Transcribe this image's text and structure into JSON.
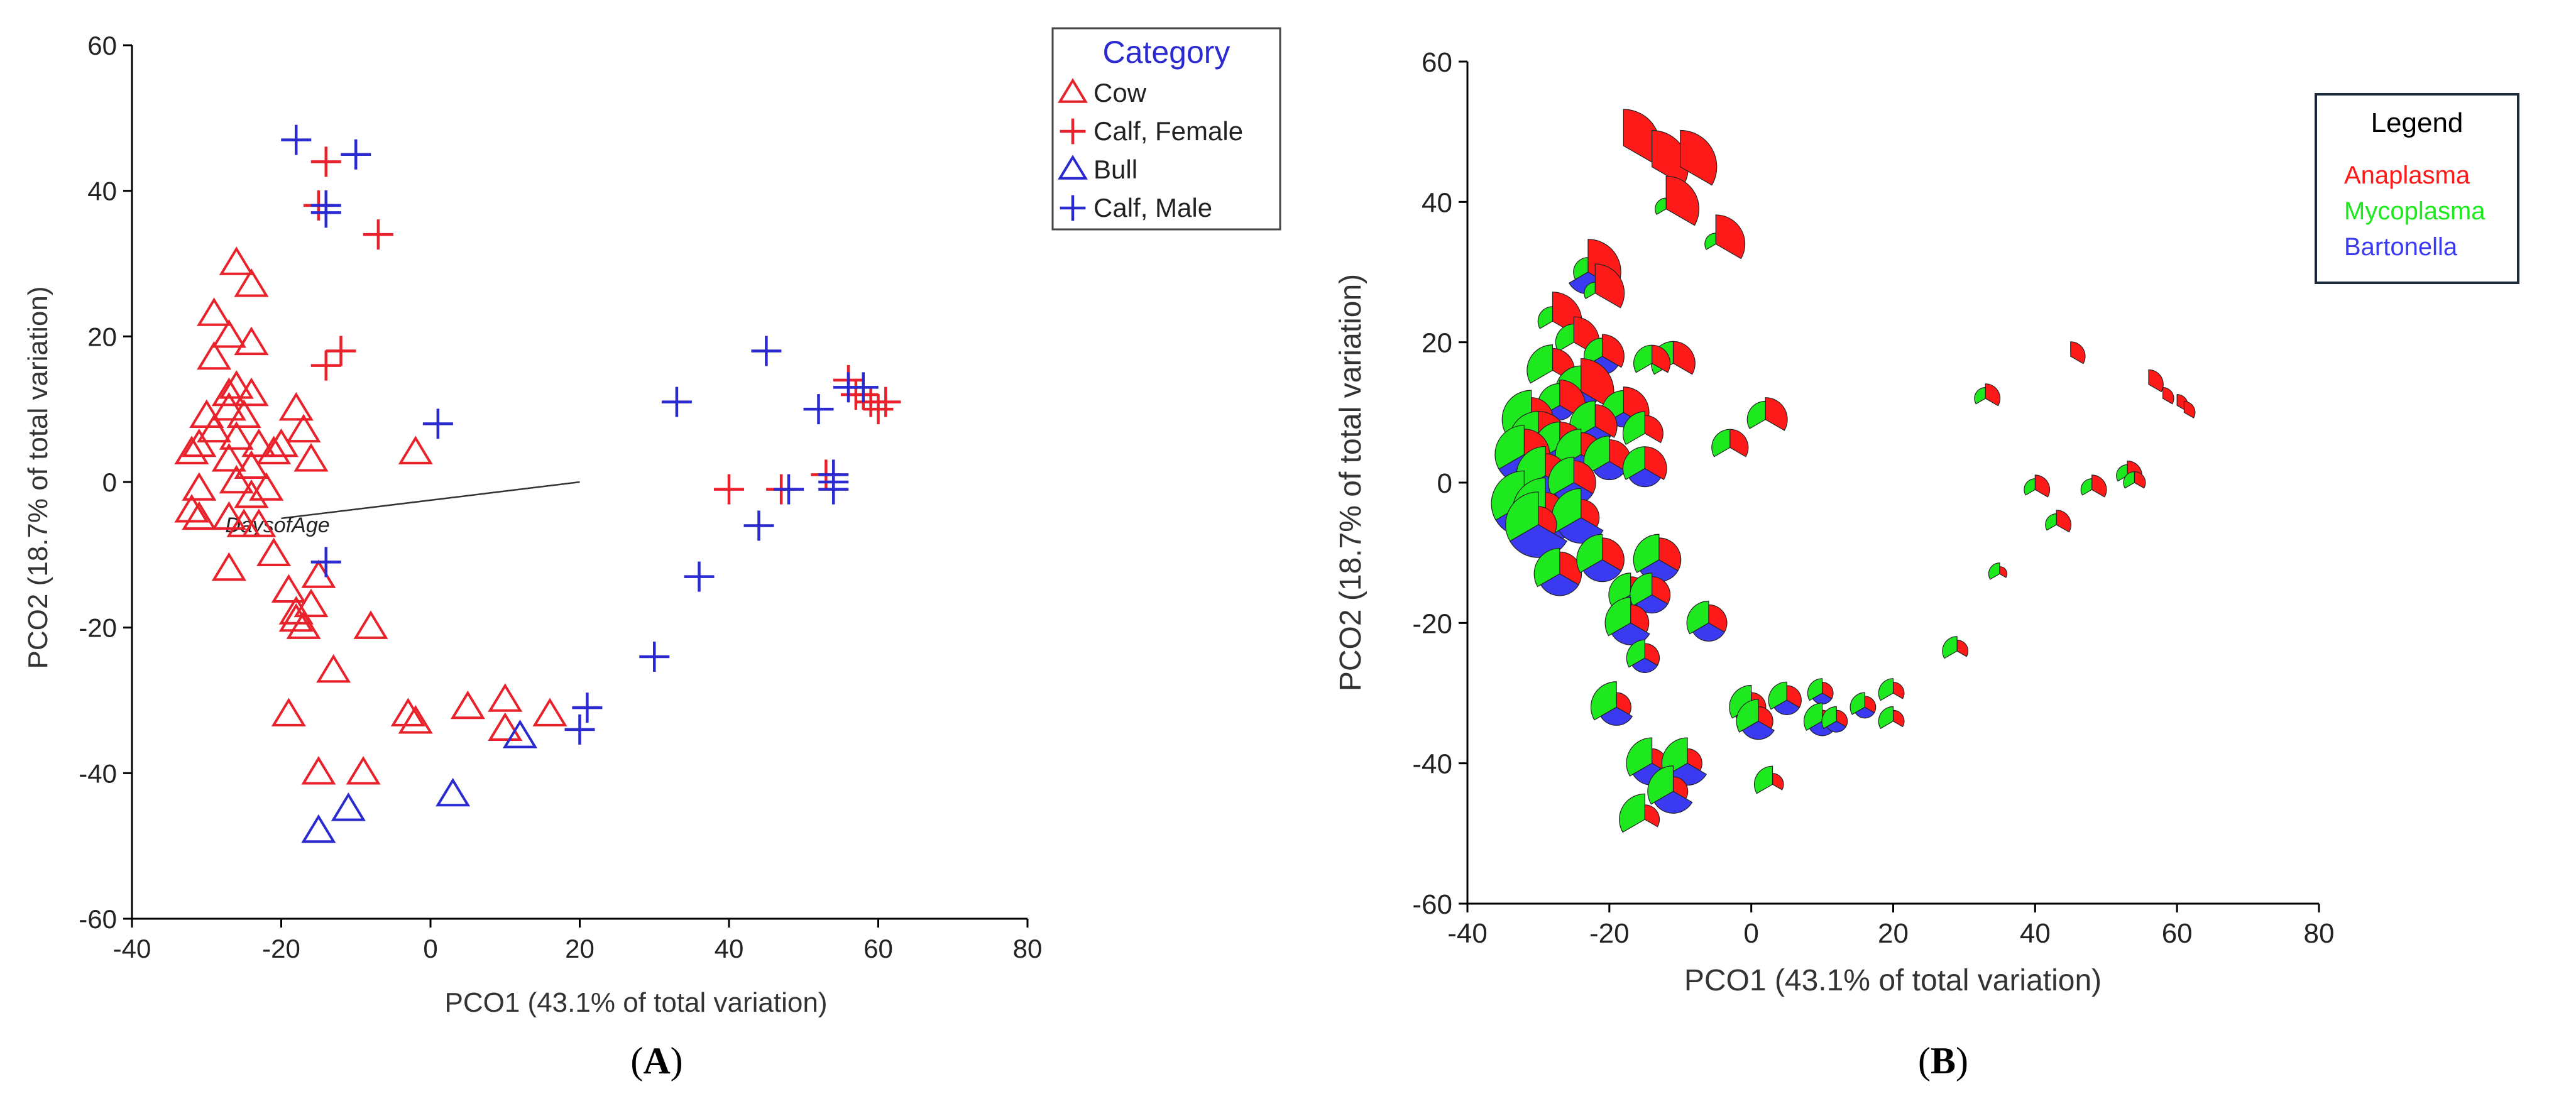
{
  "chart_data": [
    {
      "panel": "A",
      "type": "scatter",
      "xlabel": "PCO1 (43.1% of total variation)",
      "ylabel": "PCO2 (18.7% of total variation)",
      "xlim": [
        -40,
        80
      ],
      "ylim": [
        -60,
        60
      ],
      "xticks": [
        "-40",
        "-20",
        "0",
        "20",
        "40",
        "60",
        "80"
      ],
      "yticks": [
        "-60",
        "-40",
        "-20",
        "0",
        "20",
        "40",
        "60"
      ],
      "panel_label": "A",
      "legend": {
        "title": "Category",
        "position": "top-right",
        "entries": [
          {
            "label": "Cow",
            "marker": "triangle",
            "color": "#e8212b"
          },
          {
            "label": "Calf, Female",
            "marker": "plus",
            "color": "#e8212b"
          },
          {
            "label": "Bull",
            "marker": "triangle",
            "color": "#2a2ad0"
          },
          {
            "label": "Calf, Male",
            "marker": "plus",
            "color": "#2a2ad0"
          }
        ]
      },
      "vector": {
        "label": "DaysofAge",
        "from": [
          -20,
          -5
        ],
        "to": [
          20,
          0
        ]
      },
      "series": [
        {
          "name": "Cow",
          "marker": "triangle",
          "color": "#e8212b",
          "points": [
            [
              -26,
              30
            ],
            [
              -29,
              23
            ],
            [
              -24,
              27
            ],
            [
              -27,
              20
            ],
            [
              -24,
              19
            ],
            [
              -29,
              17
            ],
            [
              -26,
              13
            ],
            [
              -27,
              12
            ],
            [
              -24,
              12
            ],
            [
              -30,
              9
            ],
            [
              -27,
              10
            ],
            [
              -25,
              9
            ],
            [
              -29,
              7
            ],
            [
              -26,
              6
            ],
            [
              -23,
              5
            ],
            [
              -31,
              5
            ],
            [
              -32,
              4
            ],
            [
              -27,
              3
            ],
            [
              -21,
              4
            ],
            [
              -20,
              5
            ],
            [
              -18,
              10
            ],
            [
              -17,
              7
            ],
            [
              -16,
              3
            ],
            [
              -24,
              2
            ],
            [
              -31,
              -1
            ],
            [
              -32,
              -4
            ],
            [
              -31,
              -5
            ],
            [
              -26,
              0
            ],
            [
              -24,
              -2
            ],
            [
              -27,
              -5
            ],
            [
              -22,
              -1
            ],
            [
              -25,
              -6
            ],
            [
              -23,
              -6
            ],
            [
              -21,
              -10
            ],
            [
              -27,
              -12
            ],
            [
              -19,
              -15
            ],
            [
              -15,
              -13
            ],
            [
              -18,
              -18
            ],
            [
              -17,
              -20
            ],
            [
              -16,
              -17
            ],
            [
              -8,
              -20
            ],
            [
              -13,
              -26
            ],
            [
              -19,
              -32
            ],
            [
              -15,
              -40
            ],
            [
              -9,
              -40
            ],
            [
              -3,
              -32
            ],
            [
              -2,
              -33
            ],
            [
              5,
              -31
            ],
            [
              10,
              -30
            ],
            [
              10,
              -34
            ],
            [
              16,
              -32
            ],
            [
              -2,
              4
            ],
            [
              -18,
              -19
            ]
          ]
        },
        {
          "name": "Calf, Female",
          "marker": "plus",
          "color": "#e8212b",
          "points": [
            [
              -14,
              44
            ],
            [
              -15,
              38
            ],
            [
              -7,
              34
            ],
            [
              -14,
              16
            ],
            [
              -12,
              18
            ],
            [
              40,
              -1
            ],
            [
              47,
              -1
            ],
            [
              53,
              1
            ],
            [
              56,
              14
            ],
            [
              57,
              12
            ],
            [
              59,
              11
            ],
            [
              60,
              10
            ],
            [
              61,
              11
            ],
            [
              58,
              12
            ]
          ]
        },
        {
          "name": "Bull",
          "marker": "triangle",
          "color": "#2a2ad0",
          "points": [
            [
              -15,
              -48
            ],
            [
              -11,
              -45
            ],
            [
              3,
              -43
            ],
            [
              12,
              -35
            ]
          ]
        },
        {
          "name": "Calf, Male",
          "marker": "plus",
          "color": "#2a2ad0",
          "points": [
            [
              -18,
              47
            ],
            [
              -10,
              45
            ],
            [
              -14,
              38
            ],
            [
              -14,
              37
            ],
            [
              -14,
              -11
            ],
            [
              1,
              8
            ],
            [
              21,
              -31
            ],
            [
              20,
              -34
            ],
            [
              30,
              -24
            ],
            [
              33,
              11
            ],
            [
              36,
              -13
            ],
            [
              44,
              -6
            ],
            [
              45,
              18
            ],
            [
              48,
              -1
            ],
            [
              52,
              10
            ],
            [
              54,
              1
            ],
            [
              54,
              0
            ],
            [
              54,
              -1
            ],
            [
              56,
              13
            ],
            [
              58,
              13
            ]
          ]
        }
      ]
    },
    {
      "panel": "B",
      "type": "scatter",
      "xlabel": "PCO1 (43.1% of total variation)",
      "ylabel": "PCO2 (18.7% of total variation)",
      "xlim": [
        -40,
        80
      ],
      "ylim": [
        -60,
        60
      ],
      "xticks": [
        "-40",
        "-20",
        "0",
        "20",
        "40",
        "60",
        "80"
      ],
      "yticks": [
        "-60",
        "-40",
        "-20",
        "0",
        "20",
        "40",
        "60"
      ],
      "panel_label": "B",
      "legend": {
        "title": "Legend",
        "position": "top-right",
        "entries": [
          {
            "label": "Anaplasma",
            "color": "#ff1a1a"
          },
          {
            "label": "Mycoplasma",
            "color": "#1ee81e"
          },
          {
            "label": "Bartonella",
            "color": "#3a3af0"
          }
        ]
      },
      "series_names": [
        "Anaplasma",
        "Mycoplasma",
        "Bartonella"
      ],
      "glyphs": [
        {
          "x": -18,
          "y": 48,
          "a": 1.0,
          "m": 0.0,
          "b": 0.0
        },
        {
          "x": -14,
          "y": 45,
          "a": 1.0,
          "m": 0.0,
          "b": 0.0
        },
        {
          "x": -10,
          "y": 45,
          "a": 1.0,
          "m": 0.0,
          "b": 0.0
        },
        {
          "x": -12,
          "y": 39,
          "a": 0.9,
          "m": 0.3,
          "b": 0.0
        },
        {
          "x": -5,
          "y": 34,
          "a": 0.8,
          "m": 0.3,
          "b": 0.0
        },
        {
          "x": -23,
          "y": 30,
          "a": 0.9,
          "m": 0.4,
          "b": 0.6
        },
        {
          "x": -22,
          "y": 27,
          "a": 0.8,
          "m": 0.3,
          "b": 0.0
        },
        {
          "x": -28,
          "y": 23,
          "a": 0.8,
          "m": 0.4,
          "b": 0.0
        },
        {
          "x": -25,
          "y": 20,
          "a": 0.7,
          "m": 0.5,
          "b": 0.0
        },
        {
          "x": -21,
          "y": 18,
          "a": 0.6,
          "m": 0.5,
          "b": 0.5
        },
        {
          "x": -11,
          "y": 17,
          "a": 0.6,
          "m": 0.6,
          "b": 0.0
        },
        {
          "x": -14,
          "y": 17,
          "a": 0.5,
          "m": 0.5,
          "b": 0.0
        },
        {
          "x": -28,
          "y": 16,
          "a": 0.6,
          "m": 0.7,
          "b": 0.0
        },
        {
          "x": -24,
          "y": 13,
          "a": 0.9,
          "m": 0.7,
          "b": 0.5
        },
        {
          "x": -27,
          "y": 11,
          "a": 0.7,
          "m": 0.6,
          "b": 0.4
        },
        {
          "x": -18,
          "y": 10,
          "a": 0.7,
          "m": 0.6,
          "b": 0.4
        },
        {
          "x": 2,
          "y": 9,
          "a": 0.6,
          "m": 0.5,
          "b": 0.0
        },
        {
          "x": -31,
          "y": 9,
          "a": 0.6,
          "m": 0.8,
          "b": 0.5
        },
        {
          "x": -22,
          "y": 8,
          "a": 0.6,
          "m": 0.7,
          "b": 0.5
        },
        {
          "x": -15,
          "y": 7,
          "a": 0.5,
          "m": 0.6,
          "b": 0.0
        },
        {
          "x": -30,
          "y": 6,
          "a": 0.8,
          "m": 0.8,
          "b": 0.7
        },
        {
          "x": -27,
          "y": 5,
          "a": 0.7,
          "m": 0.7,
          "b": 0.5
        },
        {
          "x": -32,
          "y": 4,
          "a": 0.7,
          "m": 0.8,
          "b": 0.8
        },
        {
          "x": -24,
          "y": 4,
          "a": 0.6,
          "m": 0.7,
          "b": 0.5
        },
        {
          "x": -20,
          "y": 3,
          "a": 0.6,
          "m": 0.7,
          "b": 0.5
        },
        {
          "x": -15,
          "y": 2,
          "a": 0.6,
          "m": 0.6,
          "b": 0.5
        },
        {
          "x": -3,
          "y": 5,
          "a": 0.5,
          "m": 0.5,
          "b": 0.0
        },
        {
          "x": -29,
          "y": 1,
          "a": 0.6,
          "m": 0.8,
          "b": 0.7
        },
        {
          "x": -25,
          "y": 0,
          "a": 0.6,
          "m": 0.7,
          "b": 0.6
        },
        {
          "x": -32,
          "y": -3,
          "a": 0.5,
          "m": 0.9,
          "b": 0.9
        },
        {
          "x": -29,
          "y": -4,
          "a": 0.5,
          "m": 0.9,
          "b": 0.9
        },
        {
          "x": -24,
          "y": -5,
          "a": 0.5,
          "m": 0.8,
          "b": 0.7
        },
        {
          "x": -30,
          "y": -6,
          "a": 0.5,
          "m": 0.9,
          "b": 0.9
        },
        {
          "x": -13,
          "y": -11,
          "a": 0.6,
          "m": 0.7,
          "b": 0.6
        },
        {
          "x": -27,
          "y": -13,
          "a": 0.6,
          "m": 0.7,
          "b": 0.6
        },
        {
          "x": -21,
          "y": -11,
          "a": 0.6,
          "m": 0.7,
          "b": 0.6
        },
        {
          "x": -17,
          "y": -16,
          "a": 0.5,
          "m": 0.6,
          "b": 0.5
        },
        {
          "x": -14,
          "y": -16,
          "a": 0.5,
          "m": 0.6,
          "b": 0.5
        },
        {
          "x": -17,
          "y": -20,
          "a": 0.5,
          "m": 0.7,
          "b": 0.6
        },
        {
          "x": -6,
          "y": -20,
          "a": 0.5,
          "m": 0.6,
          "b": 0.5
        },
        {
          "x": -15,
          "y": -25,
          "a": 0.4,
          "m": 0.5,
          "b": 0.4
        },
        {
          "x": -19,
          "y": -32,
          "a": 0.4,
          "m": 0.7,
          "b": 0.5
        },
        {
          "x": 0,
          "y": -32,
          "a": 0.4,
          "m": 0.6,
          "b": 0.5
        },
        {
          "x": 1,
          "y": -34,
          "a": 0.4,
          "m": 0.6,
          "b": 0.5
        },
        {
          "x": 5,
          "y": -31,
          "a": 0.4,
          "m": 0.5,
          "b": 0.4
        },
        {
          "x": 10,
          "y": -30,
          "a": 0.3,
          "m": 0.4,
          "b": 0.3
        },
        {
          "x": 10,
          "y": -34,
          "a": 0.3,
          "m": 0.5,
          "b": 0.4
        },
        {
          "x": 12,
          "y": -34,
          "a": 0.3,
          "m": 0.4,
          "b": 0.3
        },
        {
          "x": 16,
          "y": -32,
          "a": 0.3,
          "m": 0.4,
          "b": 0.3
        },
        {
          "x": 20,
          "y": -30,
          "a": 0.3,
          "m": 0.4,
          "b": 0.0
        },
        {
          "x": 20,
          "y": -34,
          "a": 0.3,
          "m": 0.4,
          "b": 0.0
        },
        {
          "x": -14,
          "y": -40,
          "a": 0.4,
          "m": 0.7,
          "b": 0.6
        },
        {
          "x": -9,
          "y": -40,
          "a": 0.4,
          "m": 0.7,
          "b": 0.6
        },
        {
          "x": -11,
          "y": -44,
          "a": 0.4,
          "m": 0.7,
          "b": 0.6
        },
        {
          "x": -15,
          "y": -48,
          "a": 0.4,
          "m": 0.7,
          "b": 0.0
        },
        {
          "x": 3,
          "y": -43,
          "a": 0.3,
          "m": 0.5,
          "b": 0.0
        },
        {
          "x": 29,
          "y": -24,
          "a": 0.3,
          "m": 0.4,
          "b": 0.0
        },
        {
          "x": 33,
          "y": 12,
          "a": 0.4,
          "m": 0.3,
          "b": 0.0
        },
        {
          "x": 35,
          "y": -13,
          "a": 0.2,
          "m": 0.3,
          "b": 0.0
        },
        {
          "x": 40,
          "y": -1,
          "a": 0.4,
          "m": 0.3,
          "b": 0.0
        },
        {
          "x": 43,
          "y": -6,
          "a": 0.4,
          "m": 0.3,
          "b": 0.0
        },
        {
          "x": 45,
          "y": 18,
          "a": 0.4,
          "m": 0.0,
          "b": 0.0
        },
        {
          "x": 48,
          "y": -1,
          "a": 0.4,
          "m": 0.3,
          "b": 0.0
        },
        {
          "x": 53,
          "y": 1,
          "a": 0.4,
          "m": 0.3,
          "b": 0.0
        },
        {
          "x": 54,
          "y": 0,
          "a": 0.3,
          "m": 0.3,
          "b": 0.0
        },
        {
          "x": 56,
          "y": 14,
          "a": 0.4,
          "m": 0.0,
          "b": 0.0
        },
        {
          "x": 58,
          "y": 12,
          "a": 0.3,
          "m": 0.0,
          "b": 0.0
        },
        {
          "x": 60,
          "y": 11,
          "a": 0.3,
          "m": 0.0,
          "b": 0.0
        },
        {
          "x": 61,
          "y": 10,
          "a": 0.3,
          "m": 0.0,
          "b": 0.0
        }
      ]
    }
  ]
}
